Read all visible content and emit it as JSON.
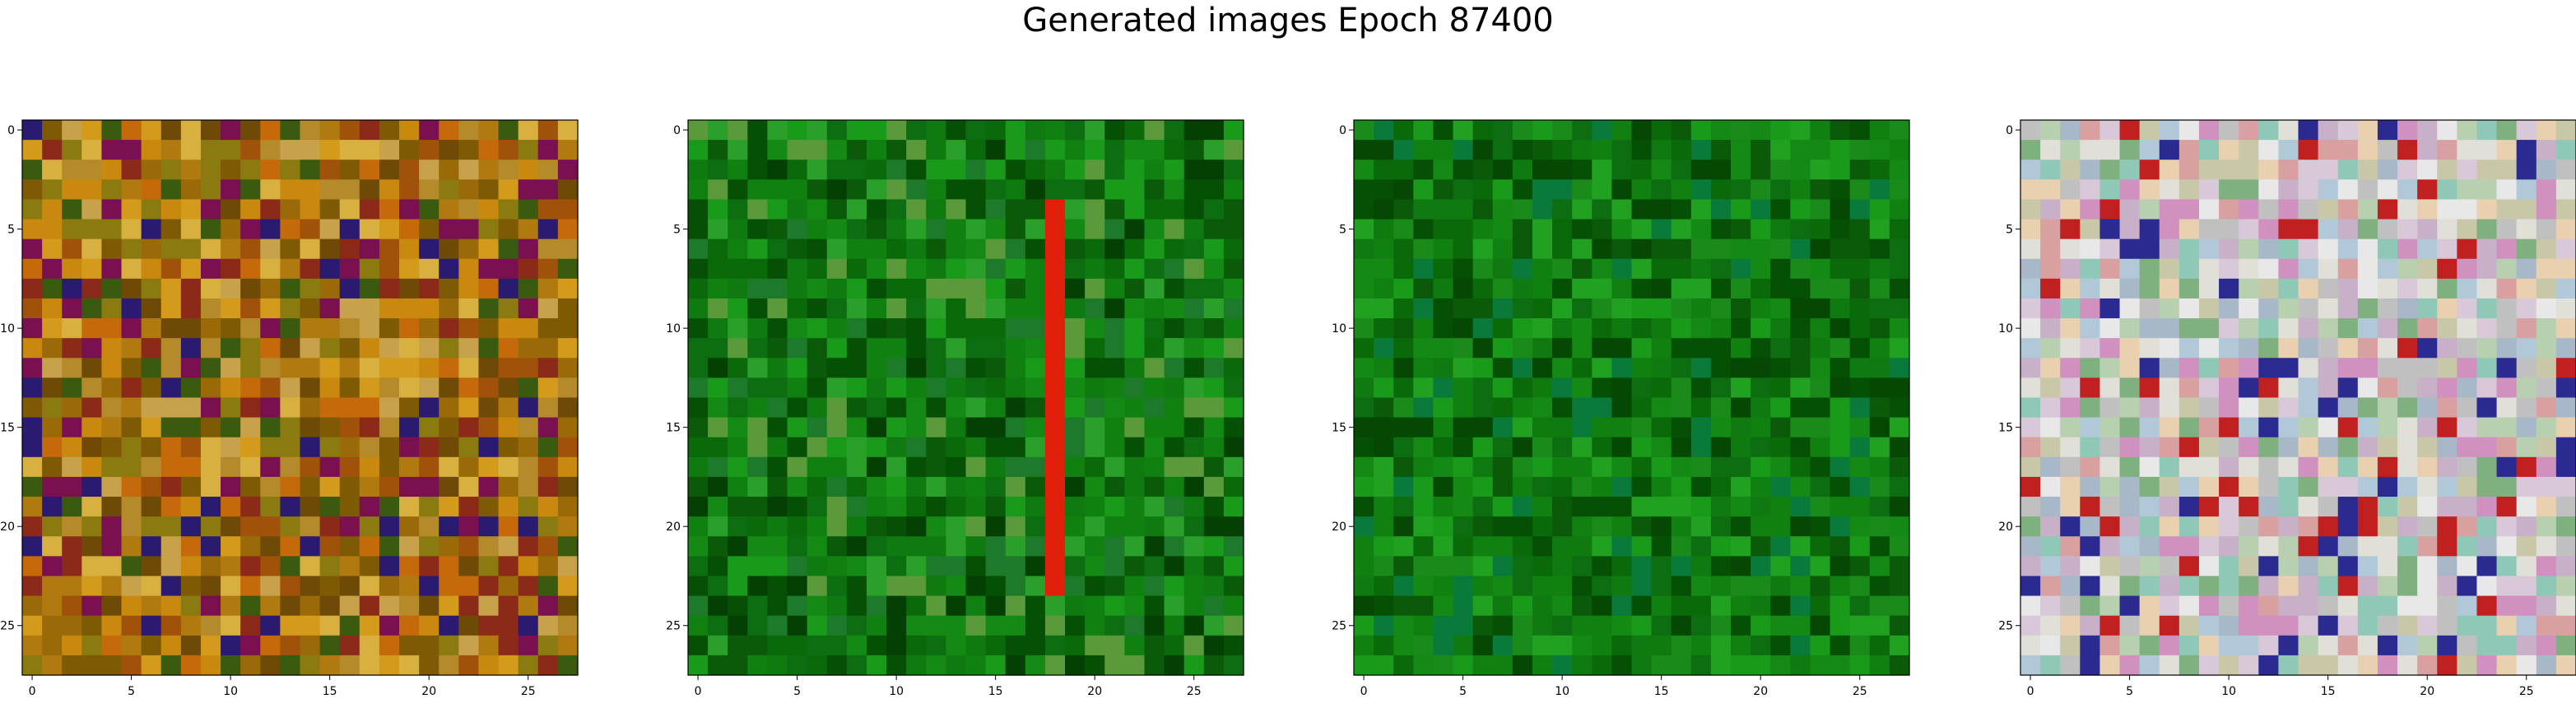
{
  "title": "Generated images Epoch 87400",
  "chart_data": [
    {
      "type": "heatmap",
      "title": "",
      "xlabel": "",
      "ylabel": "",
      "grid": false,
      "rows": 28,
      "cols": 28,
      "xlim": [
        -0.5,
        27.5
      ],
      "ylim": [
        27.5,
        -0.5
      ],
      "x_ticks": [
        0,
        5,
        10,
        15,
        20,
        25
      ],
      "y_ticks": [
        0,
        5,
        10,
        15,
        20,
        25
      ],
      "palette": [
        "#b07a10",
        "#c9890f",
        "#9a6a08",
        "#d49a1c",
        "#7f5a05",
        "#c56a0a",
        "#8a7a10",
        "#b58a2a",
        "#6e4a06",
        "#a0520a",
        "#c8a24a",
        "#8c2a1a",
        "#2a1a70",
        "#7a1050",
        "#3a5a10",
        "#d8b040"
      ],
      "colors_note_free": true
    },
    {
      "type": "heatmap",
      "title": "",
      "xlabel": "",
      "ylabel": "",
      "grid": false,
      "rows": 28,
      "cols": 28,
      "xlim": [
        -0.5,
        27.5
      ],
      "ylim": [
        27.5,
        -0.5
      ],
      "x_ticks": [
        0,
        5,
        10,
        15,
        20,
        25
      ],
      "y_ticks": [
        0,
        5,
        10,
        15,
        20,
        25
      ],
      "palette": [
        "#0a6a0a",
        "#0f7a0f",
        "#0a5a0a",
        "#148a14",
        "#065006",
        "#1a9a1a",
        "#0c6e10",
        "#2aa02a",
        "#044004",
        "#108010",
        "#5a9a3a",
        "#1c7a2a"
      ],
      "stripe_color": "#e0200a",
      "stripe_col": 18
    },
    {
      "type": "heatmap",
      "title": "",
      "xlabel": "",
      "ylabel": "",
      "grid": false,
      "rows": 28,
      "cols": 28,
      "xlim": [
        -0.5,
        27.5
      ],
      "ylim": [
        27.5,
        -0.5
      ],
      "x_ticks": [
        0,
        5,
        10,
        15,
        20,
        25
      ],
      "y_ticks": [
        0,
        5,
        10,
        15,
        20,
        25
      ],
      "palette": [
        "#0a6a0a",
        "#0f7a0f",
        "#0a5a0a",
        "#148a14",
        "#065006",
        "#1a9a1a",
        "#0c6e10",
        "#22a022",
        "#044804",
        "#108010",
        "#0a7a3a",
        "#1a8a1a"
      ]
    },
    {
      "type": "heatmap",
      "title": "",
      "xlabel": "",
      "ylabel": "",
      "grid": false,
      "rows": 28,
      "cols": 28,
      "xlim": [
        -0.5,
        27.5
      ],
      "ylim": [
        27.5,
        -0.5
      ],
      "x_ticks": [
        0,
        5,
        10,
        15,
        20,
        25
      ],
      "y_ticks": [
        0,
        5,
        10,
        15,
        20,
        25
      ],
      "palette": [
        "#c8b0c8",
        "#d8c8d8",
        "#b8d0b0",
        "#e0e0d8",
        "#a8b8c8",
        "#d090c0",
        "#c8c8a8",
        "#e8e8e8",
        "#b0c8d8",
        "#d8a0a0",
        "#90c8b8",
        "#c02020",
        "#2a2a90",
        "#e8d0b0",
        "#80b080",
        "#c0c0c0"
      ]
    }
  ]
}
